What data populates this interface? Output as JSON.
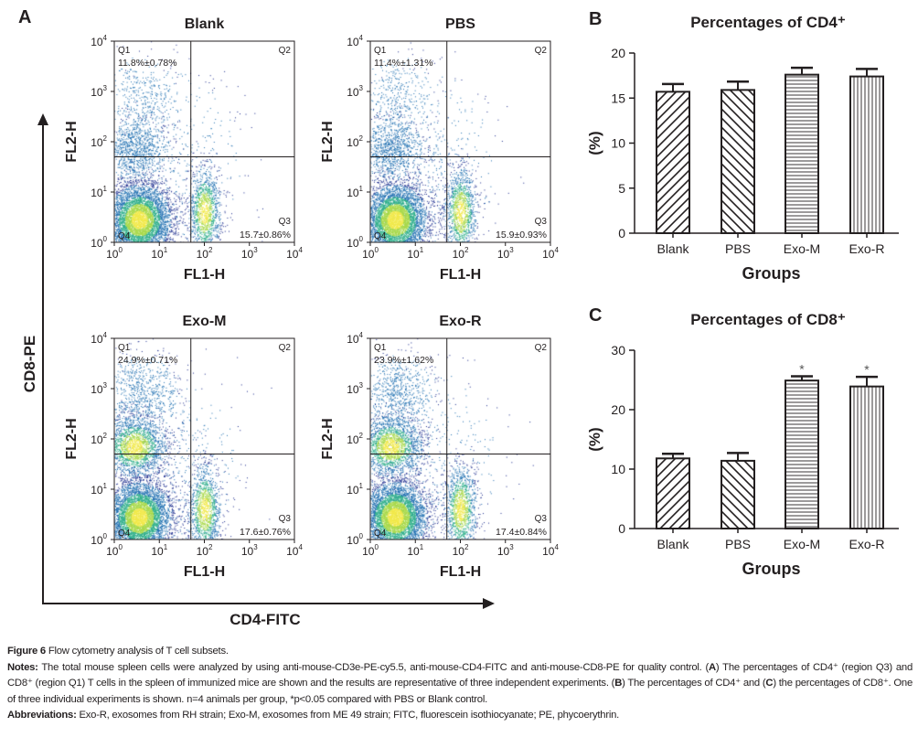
{
  "panel_letters": {
    "a": "A",
    "b": "B",
    "c": "C"
  },
  "panel_a": {
    "outer_y_label": "CD8-PE",
    "outer_x_label": "CD4-FITC",
    "x_axis_label": "FL1-H",
    "y_axis_label": "FL2-H",
    "tick_labels": [
      "10^0",
      "10^1",
      "10^2",
      "10^3",
      "10^4"
    ],
    "plots": [
      {
        "title": "Blank",
        "q1_label": "Q1",
        "q1_value": "11.8%±0.78%",
        "q2_label": "Q2",
        "q3_label": "Q3",
        "q3_value": "15.7±0.86%",
        "q4_label": "Q4"
      },
      {
        "title": "PBS",
        "q1_label": "Q1",
        "q1_value": "11.4%±1.31%",
        "q2_label": "Q2",
        "q3_label": "Q3",
        "q3_value": "15.9±0.93%",
        "q4_label": "Q4"
      },
      {
        "title": "Exo-M",
        "q1_label": "Q1",
        "q1_value": "24.9%±0.71%",
        "q2_label": "Q2",
        "q3_label": "Q3",
        "q3_value": "17.6±0.76%",
        "q4_label": "Q4"
      },
      {
        "title": "Exo-R",
        "q1_label": "Q1",
        "q1_value": "23.9%±1.62%",
        "q2_label": "Q2",
        "q3_label": "Q3",
        "q3_value": "17.4±0.84%",
        "q4_label": "Q4"
      }
    ],
    "scatter_colors": [
      "#1a2a8c",
      "#1f6fb0",
      "#2fae8a",
      "#a8d84a",
      "#f0e84a"
    ]
  },
  "chart_data": [
    {
      "type": "bar",
      "title": "Percentages of CD4⁺",
      "xlabel": "Groups",
      "ylabel": "(%)",
      "categories": [
        "Blank",
        "PBS",
        "Exo-M",
        "Exo-R"
      ],
      "values": [
        15.7,
        15.9,
        17.6,
        17.4
      ],
      "errors": [
        0.86,
        0.93,
        0.76,
        0.84
      ],
      "patterns": [
        "diagonal-up",
        "diagonal-down",
        "horizontal",
        "vertical"
      ],
      "annotations": [
        "",
        "",
        "",
        ""
      ],
      "ylim": [
        0,
        20
      ],
      "yticks": [
        0,
        5,
        10,
        15,
        20
      ],
      "grid": false
    },
    {
      "type": "bar",
      "title": "Percentages of CD8⁺",
      "xlabel": "Groups",
      "ylabel": "(%)",
      "categories": [
        "Blank",
        "PBS",
        "Exo-M",
        "Exo-R"
      ],
      "values": [
        11.8,
        11.4,
        24.9,
        23.9
      ],
      "errors": [
        0.78,
        1.31,
        0.71,
        1.62
      ],
      "patterns": [
        "diagonal-up",
        "diagonal-down",
        "horizontal",
        "vertical"
      ],
      "annotations": [
        "",
        "",
        "*",
        "*"
      ],
      "ylim": [
        0,
        30
      ],
      "yticks": [
        0,
        10,
        20,
        30
      ],
      "grid": false
    }
  ],
  "caption": {
    "figure_label": "Figure 6",
    "figure_title": " Flow cytometry analysis of T cell subsets.",
    "notes_label": "Notes:",
    "notes_text_1": " The total mouse spleen cells were analyzed by using anti-mouse-CD3e-PE-cy5.5, anti-mouse-CD4-FITC and anti-mouse-CD8-PE for quality control. (",
    "notes_a": "A",
    "notes_text_2": ") The percentages of CD4⁺ (region Q3) and CD8⁺ (region Q1) T cells in the spleen of immunized mice are shown and the results are representative of three independent experiments. (",
    "notes_b": "B",
    "notes_text_3": ") The percentages of CD4⁺ and (",
    "notes_c": "C",
    "notes_text_4": ") the percentages of CD8⁺. One of three individual experiments is shown. n=4 animals per group, *p<0.05 compared with PBS or Blank control.",
    "abbrev_label": "Abbreviations:",
    "abbrev_text": " Exo-R, exosomes from RH strain; Exo-M, exosomes from ME 49 strain; FITC, fluorescein isothiocyanate; PE, phycoerythrin."
  }
}
